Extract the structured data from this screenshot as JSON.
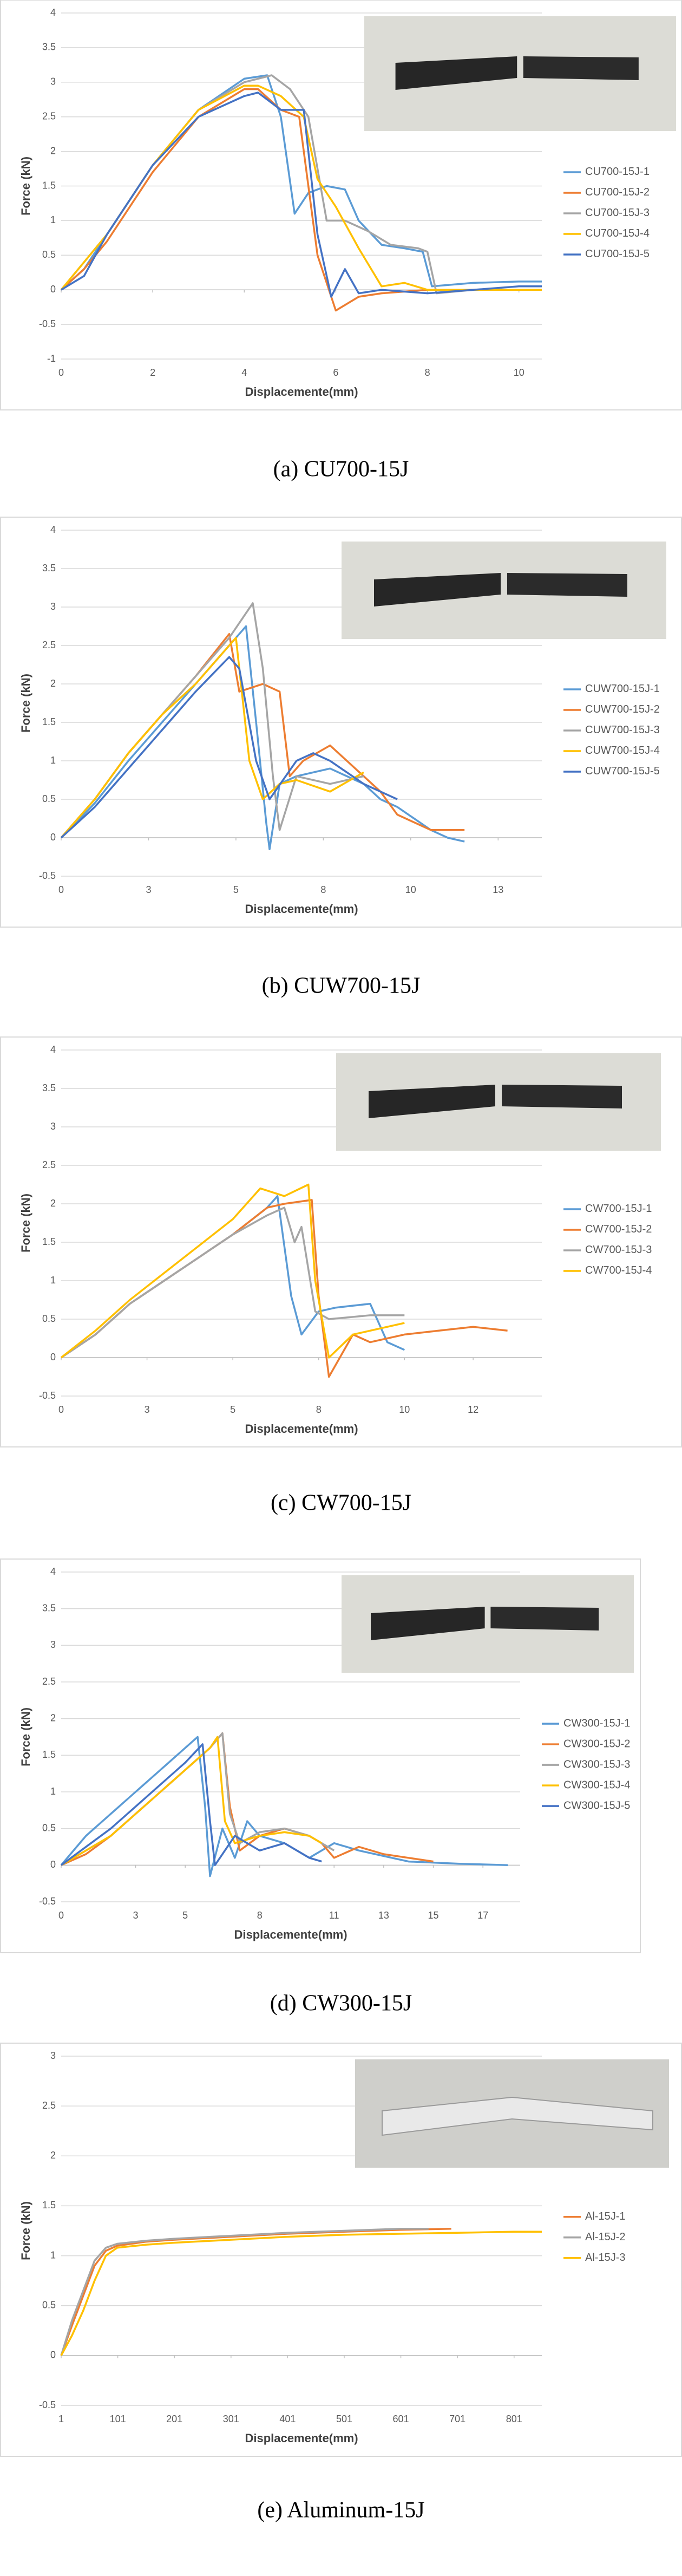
{
  "chart_data": [
    {
      "type": "line",
      "caption": "(a) CU700-15J",
      "xlabel": "Displacemente(mm)",
      "ylabel": "Force (kN)",
      "xlim": [
        0,
        10.5
      ],
      "xticks": [
        0,
        2,
        4,
        6,
        8,
        10
      ],
      "ylim": [
        -1,
        4
      ],
      "yticks": [
        -1,
        -0.5,
        0,
        0.5,
        1,
        1.5,
        2,
        2.5,
        3,
        3.5,
        4
      ],
      "grid": true,
      "legend": "right",
      "series": [
        {
          "name": "CU700-15J-1",
          "color": "#5B9BD5",
          "x": [
            0,
            0.5,
            1,
            2,
            3,
            4,
            4.5,
            4.8,
            5.1,
            5.4,
            5.8,
            6.2,
            6.5,
            7,
            7.5,
            7.9,
            8.1,
            9,
            10,
            10.5
          ],
          "values": [
            0,
            0.3,
            0.8,
            1.8,
            2.6,
            3.05,
            3.1,
            2.5,
            1.1,
            1.4,
            1.5,
            1.45,
            1.0,
            0.65,
            0.6,
            0.55,
            0.05,
            0.1,
            0.12,
            0.12
          ]
        },
        {
          "name": "CU700-15J-2",
          "color": "#ED7D31",
          "x": [
            0,
            0.5,
            1,
            2,
            3,
            4,
            4.3,
            4.8,
            5.2,
            5.6,
            6,
            6.5,
            7,
            8,
            9,
            10,
            10.5
          ],
          "values": [
            0,
            0.3,
            0.7,
            1.7,
            2.5,
            2.9,
            2.9,
            2.6,
            2.5,
            0.5,
            -0.3,
            -0.1,
            -0.05,
            0,
            0,
            0,
            0
          ]
        },
        {
          "name": "CU700-15J-3",
          "color": "#A5A5A5",
          "x": [
            0,
            1,
            2,
            3,
            4,
            4.6,
            5,
            5.4,
            5.8,
            6.2,
            6.7,
            7.2,
            7.8,
            8,
            8.2,
            9,
            10.5
          ],
          "values": [
            0,
            0.8,
            1.8,
            2.6,
            3.0,
            3.1,
            2.9,
            2.5,
            1.0,
            1.0,
            0.85,
            0.65,
            0.6,
            0.55,
            -0.05,
            0,
            0
          ]
        },
        {
          "name": "CU700-15J-4",
          "color": "#FFC000",
          "x": [
            0,
            1,
            2,
            3,
            4,
            4.3,
            4.8,
            5.3,
            5.6,
            6,
            6.5,
            7,
            7.5,
            8,
            9,
            10.5
          ],
          "values": [
            0,
            0.8,
            1.8,
            2.6,
            2.95,
            2.95,
            2.8,
            2.5,
            1.6,
            1.2,
            0.6,
            0.05,
            0.1,
            0,
            0,
            0
          ]
        },
        {
          "name": "CU700-15J-5",
          "color": "#4472C4",
          "x": [
            0,
            0.5,
            1,
            2,
            3,
            4,
            4.3,
            4.8,
            5.3,
            5.6,
            5.9,
            6.2,
            6.5,
            7,
            8,
            9,
            10,
            10.5
          ],
          "values": [
            0,
            0.2,
            0.8,
            1.8,
            2.5,
            2.8,
            2.85,
            2.6,
            2.6,
            0.8,
            -0.1,
            0.3,
            -0.05,
            0,
            -0.05,
            0,
            0.05,
            0.05
          ]
        }
      ]
    },
    {
      "type": "line",
      "caption": "(b) CUW700-15J",
      "xlabel": "Displacemente(mm)",
      "ylabel": "Force (kN)",
      "xlim": [
        0,
        14.3
      ],
      "xticks": [
        0,
        {
          "value": 2.6,
          "label": "3"
        },
        {
          "value": 5.2,
          "label": "5"
        },
        {
          "value": 7.8,
          "label": "8"
        },
        {
          "value": 10.4,
          "label": "10"
        },
        13
      ],
      "ylim": [
        -0.5,
        4
      ],
      "yticks": [
        -0.5,
        0,
        0.5,
        1,
        1.5,
        2,
        2.5,
        3,
        3.5,
        4
      ],
      "grid": true,
      "legend": "right",
      "series": [
        {
          "name": "CUW700-15J-1",
          "color": "#5B9BD5",
          "x": [
            0,
            1,
            2,
            3,
            4,
            5,
            5.5,
            5.8,
            6.1,
            6.2,
            6.5,
            7,
            8,
            9,
            9.5,
            10,
            11,
            11.5,
            12
          ],
          "values": [
            0,
            0.45,
            1.0,
            1.5,
            2.0,
            2.5,
            2.75,
            1.5,
            0.2,
            -0.15,
            0.7,
            0.8,
            0.9,
            0.7,
            0.5,
            0.4,
            0.1,
            0,
            -0.05
          ]
        },
        {
          "name": "CUW700-15J-2",
          "color": "#ED7D31",
          "x": [
            0,
            1,
            2,
            3,
            4,
            5,
            5.3,
            6,
            6.5,
            6.8,
            7.2,
            8,
            9,
            9.5,
            10,
            11,
            12
          ],
          "values": [
            0,
            0.5,
            1.1,
            1.6,
            2.1,
            2.65,
            1.9,
            2.0,
            1.9,
            0.8,
            1.0,
            1.2,
            0.8,
            0.6,
            0.3,
            0.1,
            0.1
          ]
        },
        {
          "name": "CUW700-15J-3",
          "color": "#A5A5A5",
          "x": [
            0,
            1,
            2,
            3,
            4,
            5,
            5.7,
            6,
            6.3,
            6.5,
            7,
            8,
            9
          ],
          "values": [
            0,
            0.5,
            1.1,
            1.6,
            2.1,
            2.6,
            3.05,
            2.2,
            0.8,
            0.1,
            0.8,
            0.7,
            0.8
          ]
        },
        {
          "name": "CUW700-15J-4",
          "color": "#FFC000",
          "x": [
            0,
            1,
            2,
            3,
            4,
            5,
            5.2,
            5.6,
            6,
            6.5,
            7,
            8,
            9
          ],
          "values": [
            0,
            0.5,
            1.1,
            1.6,
            2.0,
            2.5,
            2.6,
            1.0,
            0.5,
            0.7,
            0.75,
            0.6,
            0.85
          ]
        },
        {
          "name": "CUW700-15J-5",
          "color": "#4472C4",
          "x": [
            0,
            1,
            2,
            3,
            4,
            5,
            5.3,
            5.8,
            6.2,
            7,
            7.5,
            8,
            9,
            9.5,
            10
          ],
          "values": [
            0,
            0.4,
            0.9,
            1.4,
            1.9,
            2.35,
            2.2,
            1.0,
            0.5,
            1.0,
            1.1,
            1.0,
            0.7,
            0.6,
            0.5
          ]
        }
      ]
    },
    {
      "type": "line",
      "caption": "(c) CW700-15J",
      "xlabel": "Displacemente(mm)",
      "ylabel": "Force (kN)",
      "xlim": [
        0,
        14
      ],
      "xticks": [
        0,
        {
          "value": 2.5,
          "label": "3"
        },
        5,
        {
          "value": 7.5,
          "label": "8"
        },
        10,
        12
      ],
      "ylim": [
        -0.5,
        4
      ],
      "yticks": [
        -0.5,
        0,
        0.5,
        1,
        1.5,
        2,
        2.5,
        3,
        3.5,
        4
      ],
      "grid": true,
      "legend": "right",
      "series": [
        {
          "name": "CW700-15J-1",
          "color": "#5B9BD5",
          "x": [
            0,
            1,
            2,
            3,
            4,
            5,
            6,
            6.3,
            6.7,
            7,
            7.5,
            8,
            9,
            9.5,
            10
          ],
          "values": [
            0,
            0.3,
            0.7,
            1.0,
            1.3,
            1.6,
            1.95,
            2.1,
            0.8,
            0.3,
            0.6,
            0.65,
            0.7,
            0.2,
            0.1
          ]
        },
        {
          "name": "CW700-15J-2",
          "color": "#ED7D31",
          "x": [
            0,
            1,
            2,
            3,
            4,
            5,
            6,
            6.5,
            7.3,
            7.5,
            7.8,
            8.5,
            9,
            10,
            11,
            12,
            13
          ],
          "values": [
            0,
            0.3,
            0.7,
            1.0,
            1.3,
            1.6,
            1.95,
            2.0,
            2.05,
            0.8,
            -0.25,
            0.3,
            0.2,
            0.3,
            0.35,
            0.4,
            0.35
          ]
        },
        {
          "name": "CW700-15J-3",
          "color": "#A5A5A5",
          "x": [
            0,
            1,
            2,
            3,
            4,
            5,
            6,
            6.5,
            6.8,
            7,
            7.4,
            7.8,
            9,
            10
          ],
          "values": [
            0,
            0.3,
            0.7,
            1.0,
            1.3,
            1.6,
            1.85,
            1.95,
            1.5,
            1.7,
            0.6,
            0.5,
            0.55,
            0.55
          ]
        },
        {
          "name": "CW700-15J-4",
          "color": "#FFC000",
          "x": [
            0,
            1,
            2,
            3,
            4,
            5,
            5.8,
            6.5,
            7.2,
            7.4,
            7.8,
            8.5,
            9,
            10
          ],
          "values": [
            0,
            0.35,
            0.75,
            1.1,
            1.45,
            1.8,
            2.2,
            2.1,
            2.25,
            1.0,
            0,
            0.3,
            0.35,
            0.45
          ]
        }
      ]
    },
    {
      "type": "line",
      "caption": "(d) CW300-15J",
      "xlabel": "Displacemente(mm)",
      "ylabel": "Force (kN)",
      "xlim": [
        0,
        18.5
      ],
      "xticks": [
        0,
        3,
        5,
        8,
        11,
        13,
        15,
        17
      ],
      "ylim": [
        -0.5,
        4
      ],
      "yticks": [
        -0.5,
        0,
        0.5,
        1,
        1.5,
        2,
        2.5,
        3,
        3.5,
        4
      ],
      "grid": true,
      "legend": "right",
      "series": [
        {
          "name": "CW300-15J-1",
          "color": "#5B9BD5",
          "x": [
            0,
            1,
            2,
            3,
            4,
            5,
            5.5,
            5.8,
            6,
            6.5,
            7,
            7.5,
            8,
            9,
            10,
            11,
            12,
            14,
            16,
            18
          ],
          "values": [
            0,
            0.4,
            0.7,
            1.0,
            1.3,
            1.6,
            1.75,
            0.8,
            -0.15,
            0.5,
            0.1,
            0.6,
            0.4,
            0.3,
            0.1,
            0.3,
            0.2,
            0.05,
            0.02,
            0
          ]
        },
        {
          "name": "CW300-15J-2",
          "color": "#ED7D31",
          "x": [
            0,
            1,
            2,
            3,
            4,
            5,
            6,
            6.5,
            6.8,
            7.2,
            8,
            9,
            10,
            10.5,
            11,
            12,
            13,
            14,
            15
          ],
          "values": [
            0,
            0.15,
            0.4,
            0.7,
            1.0,
            1.3,
            1.6,
            1.8,
            0.8,
            0.2,
            0.4,
            0.5,
            0.4,
            0.3,
            0.1,
            0.25,
            0.15,
            0.1,
            0.05
          ]
        },
        {
          "name": "CW300-15J-3",
          "color": "#A5A5A5",
          "x": [
            0,
            2,
            4,
            6,
            6.5,
            6.8,
            7.2,
            8,
            9,
            10,
            11
          ],
          "values": [
            0,
            0.4,
            1.0,
            1.6,
            1.8,
            0.7,
            0.3,
            0.45,
            0.5,
            0.4,
            0.2
          ]
        },
        {
          "name": "CW300-15J-4",
          "color": "#FFC000",
          "x": [
            0,
            2,
            4,
            6,
            6.3,
            6.6,
            7,
            8,
            9,
            10,
            10.5
          ],
          "values": [
            0,
            0.4,
            1.0,
            1.6,
            1.75,
            0.6,
            0.3,
            0.4,
            0.45,
            0.4,
            0.3
          ]
        },
        {
          "name": "CW300-15J-5",
          "color": "#4472C4",
          "x": [
            0,
            2,
            4,
            5,
            5.7,
            6,
            6.2,
            7,
            8,
            9,
            10,
            10.5
          ],
          "values": [
            0,
            0.5,
            1.1,
            1.4,
            1.65,
            0.6,
            0,
            0.4,
            0.2,
            0.3,
            0.1,
            0.05
          ]
        }
      ]
    },
    {
      "type": "line",
      "caption": "(e) Aluminum-15J",
      "xlabel": "Displacemente(mm)",
      "ylabel": "Force (kN)",
      "xlim": [
        1,
        850
      ],
      "xticks": [
        1,
        101,
        201,
        301,
        401,
        501,
        601,
        701,
        801
      ],
      "ylim": [
        -0.5,
        3
      ],
      "yticks": [
        -0.5,
        0,
        0.5,
        1,
        1.5,
        2,
        2.5,
        3
      ],
      "grid": true,
      "legend": "right",
      "series": [
        {
          "name": "Al-15J-1",
          "color": "#ED7D31",
          "x": [
            1,
            20,
            40,
            60,
            80,
            100,
            150,
            200,
            300,
            400,
            500,
            600,
            690
          ],
          "values": [
            0,
            0.3,
            0.6,
            0.9,
            1.05,
            1.1,
            1.14,
            1.16,
            1.19,
            1.22,
            1.24,
            1.26,
            1.27
          ]
        },
        {
          "name": "Al-15J-2",
          "color": "#A5A5A5",
          "x": [
            1,
            20,
            40,
            60,
            80,
            100,
            150,
            200,
            300,
            400,
            500,
            600,
            650
          ],
          "values": [
            0,
            0.35,
            0.65,
            0.95,
            1.08,
            1.12,
            1.15,
            1.17,
            1.2,
            1.23,
            1.25,
            1.27,
            1.27
          ]
        },
        {
          "name": "Al-15J-3",
          "color": "#FFC000",
          "x": [
            1,
            20,
            40,
            60,
            80,
            100,
            150,
            200,
            300,
            400,
            500,
            600,
            700,
            800,
            850
          ],
          "values": [
            0,
            0.2,
            0.45,
            0.75,
            1.0,
            1.08,
            1.11,
            1.13,
            1.16,
            1.19,
            1.21,
            1.22,
            1.23,
            1.24,
            1.24
          ]
        }
      ]
    }
  ]
}
